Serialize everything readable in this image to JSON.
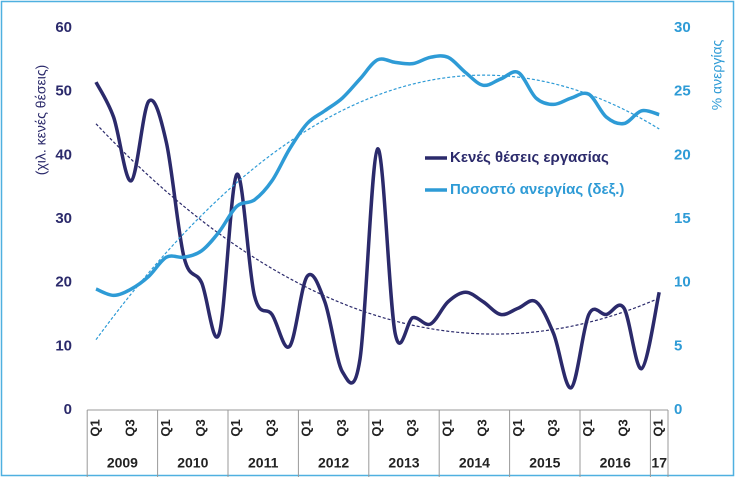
{
  "chart_data": {
    "type": "line",
    "ylabel": "(χιλ. κενές θέσεις)",
    "y2label": "% ανεργίας",
    "categories": [
      "Q1",
      null,
      "Q3",
      null,
      "Q1",
      null,
      "Q3",
      null,
      "Q1",
      null,
      "Q3",
      null,
      "Q1",
      null,
      "Q3",
      null,
      "Q1",
      null,
      "Q3",
      null,
      "Q1",
      null,
      "Q3",
      null,
      "Q1",
      null,
      "Q3",
      null,
      "Q1",
      null,
      "Q3",
      null,
      "Q1"
    ],
    "years": [
      "2009",
      "2010",
      "2011",
      "2012",
      "2013",
      "2014",
      "2015",
      "2016",
      "17"
    ],
    "series": [
      {
        "name": "Κενές θέσεις εργασίας",
        "color": "#2b2a6b",
        "axis": "y",
        "values": [
          51.5,
          46,
          36,
          48.5,
          42,
          24,
          20,
          12,
          37,
          18,
          15,
          10,
          21,
          17,
          6,
          8,
          41,
          12,
          14.5,
          13.5,
          17,
          18.5,
          17,
          15,
          16,
          17,
          12,
          3.5,
          15,
          15,
          16,
          6.5,
          18.5
        ]
      },
      {
        "name": "Ποσοστό ανεργίας (δεξ.)",
        "color": "#2e9bd6",
        "axis": "y2",
        "values": [
          9.5,
          9,
          9.5,
          10.5,
          12,
          12,
          12.5,
          14,
          16,
          16.5,
          18,
          20.5,
          22.5,
          23.5,
          24.5,
          26,
          27.5,
          27.3,
          27.2,
          27.7,
          27.7,
          26.5,
          25.5,
          26,
          26.5,
          24.5,
          24,
          24.5,
          24.8,
          23,
          22.5,
          23.5,
          23.2
        ]
      }
    ],
    "ylim": [
      0,
      60
    ],
    "yticks": [
      0,
      10,
      20,
      30,
      40,
      50,
      60
    ],
    "y2lim": [
      0,
      30
    ],
    "y2ticks": [
      0,
      5,
      10,
      15,
      20,
      25,
      30
    ],
    "trendline": true
  }
}
